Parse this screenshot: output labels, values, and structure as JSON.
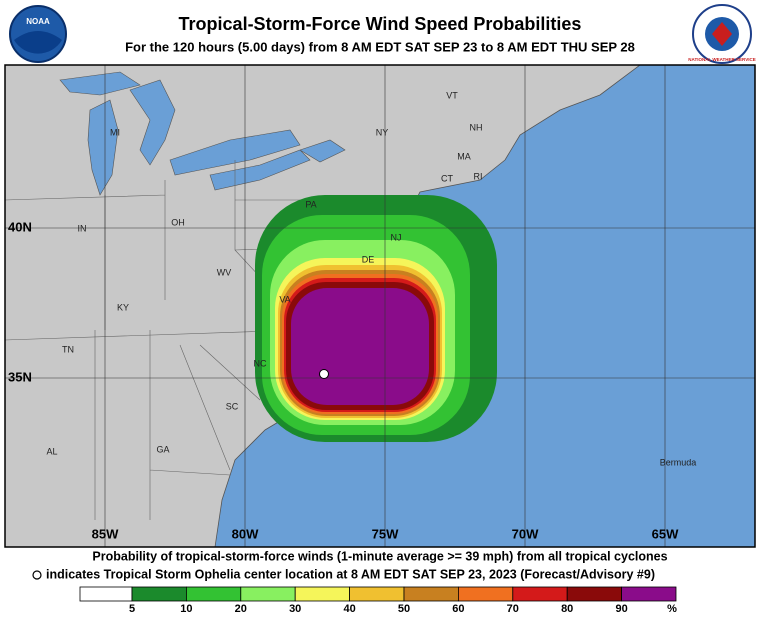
{
  "header": {
    "title": "Tropical-Storm-Force Wind Speed Probabilities",
    "subtitle": "For the 120 hours (5.00 days) from 8 AM EDT SAT SEP 23 to 8 AM EDT THU SEP 28",
    "left_logo": "NOAA",
    "right_logo": "NATIONAL WEATHER SERVICE"
  },
  "map": {
    "lat_labels": [
      "40N",
      "35N"
    ],
    "lon_labels": [
      "85W",
      "80W",
      "75W",
      "70W",
      "65W"
    ],
    "place_labels": [
      "MI",
      "NY",
      "VT",
      "NH",
      "MA",
      "CT",
      "RI",
      "PA",
      "OH",
      "IN",
      "NJ",
      "DE",
      "WV",
      "VA",
      "KY",
      "NC",
      "TN",
      "SC",
      "GA",
      "AL",
      "Bermuda"
    ]
  },
  "footer": {
    "line1": "Probability of tropical-storm-force winds (1-minute average >= 39 mph) from all tropical cyclones",
    "line2": "indicates Tropical Storm Ophelia center location at 8 AM EDT SAT SEP 23, 2023 (Forecast/Advisory #9)"
  },
  "legend": {
    "labels": [
      5,
      10,
      20,
      30,
      40,
      50,
      60,
      70,
      80,
      90
    ],
    "unit": "%",
    "colors": [
      "#ffffff",
      "#1b8a2c",
      "#33c233",
      "#88f060",
      "#f5f55a",
      "#f0c030",
      "#c88020",
      "#f07020",
      "#d41a1a",
      "#8a0a0a",
      "#8a0c8a"
    ]
  }
}
